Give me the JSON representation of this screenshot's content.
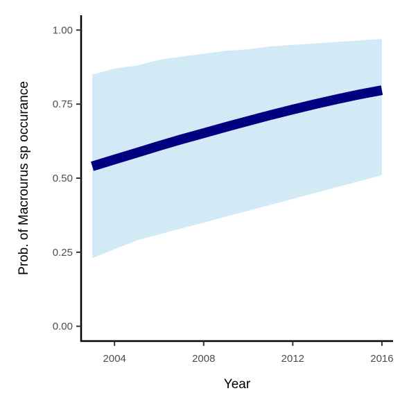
{
  "chart_data": {
    "type": "line",
    "xlabel": "Year",
    "ylabel": "Prob. of  Macrourus sp  occurance",
    "xlim": [
      2002.5,
      2016.5
    ],
    "ylim": [
      -0.05,
      1.05
    ],
    "x_ticks": [
      2004,
      2008,
      2012,
      2016
    ],
    "y_ticks": [
      0.0,
      0.25,
      0.5,
      0.75,
      1.0
    ],
    "x_tick_labels": [
      "2004",
      "2008",
      "2012",
      "2016"
    ],
    "y_tick_labels": [
      "0.00",
      "0.25",
      "0.50",
      "0.75",
      "1.00"
    ],
    "grid": false,
    "series": [
      {
        "x": [
          2003,
          2004,
          2005,
          2006,
          2007,
          2008,
          2009,
          2010,
          2011,
          2012,
          2013,
          2014,
          2015,
          2016
        ],
        "y": [
          0.54,
          0.563,
          0.586,
          0.609,
          0.631,
          0.652,
          0.673,
          0.693,
          0.713,
          0.732,
          0.75,
          0.767,
          0.783,
          0.797
        ],
        "lower": [
          0.23,
          0.26,
          0.29,
          0.31,
          0.33,
          0.35,
          0.37,
          0.39,
          0.41,
          0.43,
          0.45,
          0.47,
          0.49,
          0.51
        ],
        "upper": [
          0.85,
          0.87,
          0.88,
          0.9,
          0.91,
          0.92,
          0.93,
          0.935,
          0.945,
          0.95,
          0.955,
          0.96,
          0.965,
          0.97
        ],
        "line_color": "#000080",
        "band_color": "#d1eaf6"
      }
    ]
  }
}
